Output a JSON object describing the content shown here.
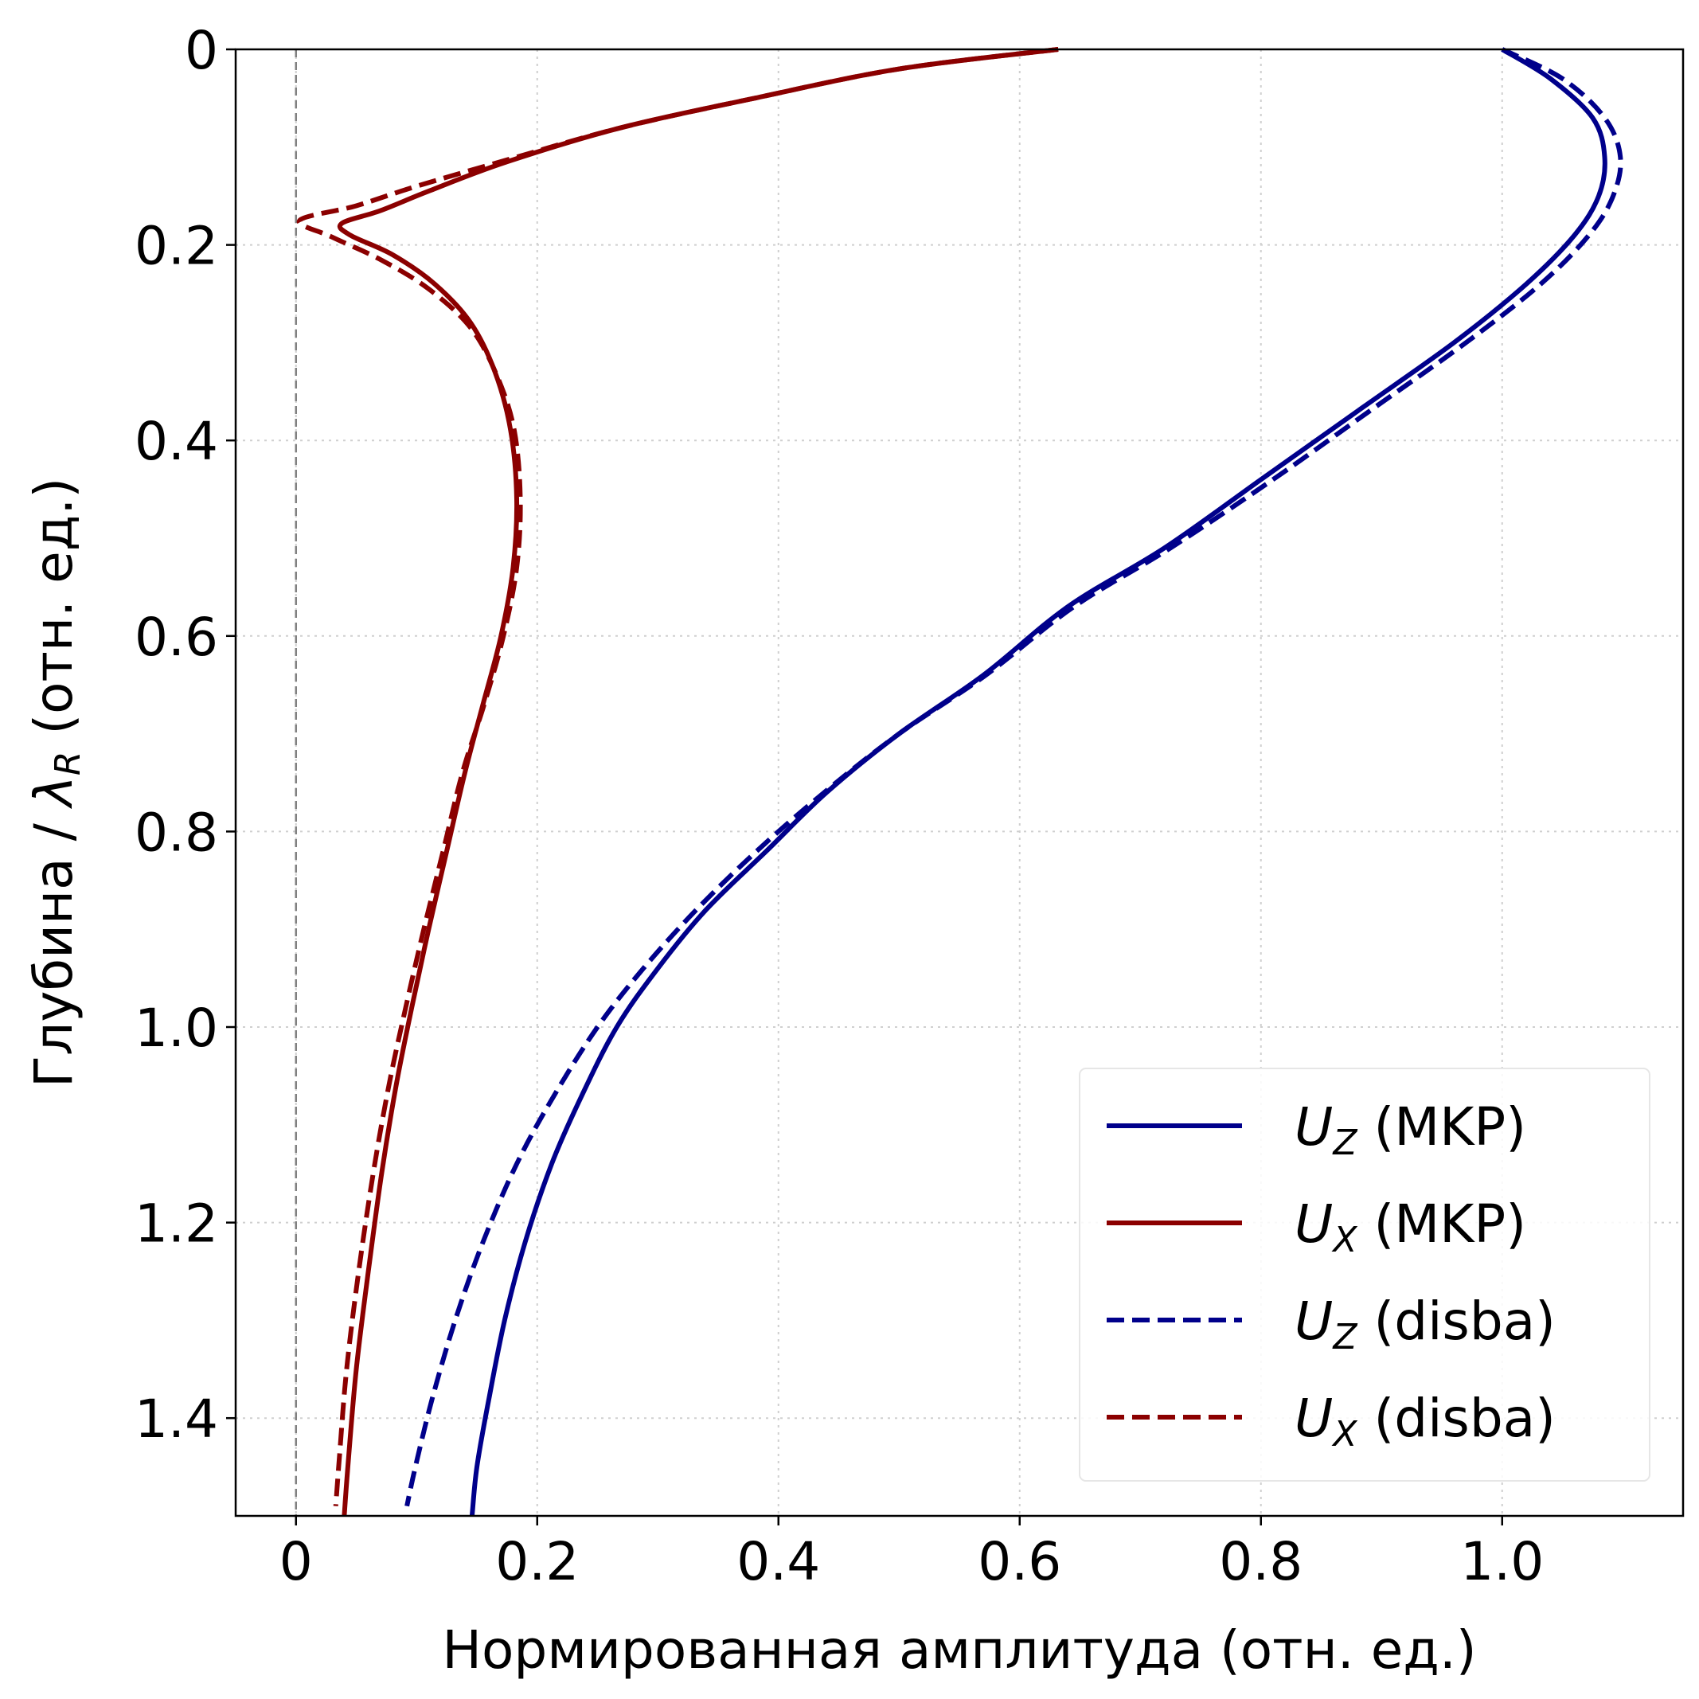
{
  "chart_data": {
    "type": "line",
    "xlabel": "Нормированная амплитуда (отн. ед.)",
    "ylabel": "Глубина / λR (отн. ед.)",
    "ylabel_parts": {
      "before": "Глубина / ",
      "symbol": "λ",
      "subscript": "R",
      "after": " (отн. ед.)"
    },
    "xlim": [
      -0.05,
      1.15
    ],
    "ylim": [
      1.5,
      0
    ],
    "y_inverted": true,
    "grid": true,
    "legend_position": "bottom-right",
    "xticks": [
      0,
      0.2,
      0.4,
      0.6,
      0.8,
      1.0
    ],
    "xtick_labels": [
      "0",
      "0.2",
      "0.4",
      "0.6",
      "0.8",
      "1.0"
    ],
    "yticks": [
      0,
      0.2,
      0.4,
      0.6,
      0.8,
      1.0,
      1.2,
      1.4
    ],
    "ytick_labels": [
      "0",
      "0.2",
      "0.4",
      "0.6",
      "0.8",
      "1.0",
      "1.2",
      "1.4"
    ],
    "reference_line": {
      "x": 0,
      "style": "dashed",
      "color": "#808080"
    },
    "series": [
      {
        "name": "U_Z (MKP)",
        "legend_symbol": "U",
        "legend_sub": "Z",
        "legend_suffix": " (MKP)",
        "color": "#00008b",
        "style": "solid",
        "points": [
          [
            1.0,
            0
          ],
          [
            1.04,
            0.03
          ],
          [
            1.075,
            0.07
          ],
          [
            1.085,
            0.11
          ],
          [
            1.08,
            0.15
          ],
          [
            1.06,
            0.19
          ],
          [
            1.02,
            0.24
          ],
          [
            0.96,
            0.3
          ],
          [
            0.88,
            0.37
          ],
          [
            0.8,
            0.44
          ],
          [
            0.72,
            0.51
          ],
          [
            0.64,
            0.57
          ],
          [
            0.57,
            0.64
          ],
          [
            0.5,
            0.7
          ],
          [
            0.44,
            0.76
          ],
          [
            0.39,
            0.82
          ],
          [
            0.34,
            0.88
          ],
          [
            0.3,
            0.94
          ],
          [
            0.266,
            1.0
          ],
          [
            0.237,
            1.07
          ],
          [
            0.212,
            1.14
          ],
          [
            0.19,
            1.22
          ],
          [
            0.173,
            1.3
          ],
          [
            0.16,
            1.38
          ],
          [
            0.15,
            1.45
          ],
          [
            0.146,
            1.5
          ]
        ]
      },
      {
        "name": "U_X (MKP)",
        "legend_symbol": "U",
        "legend_sub": "X",
        "legend_suffix": " (MKP)",
        "color": "#8b0000",
        "style": "solid",
        "points": [
          [
            0.632,
            0
          ],
          [
            0.5,
            0.02
          ],
          [
            0.38,
            0.05
          ],
          [
            0.27,
            0.08
          ],
          [
            0.175,
            0.115
          ],
          [
            0.11,
            0.145
          ],
          [
            0.07,
            0.165
          ],
          [
            0.038,
            0.178
          ],
          [
            0.045,
            0.19
          ],
          [
            0.08,
            0.21
          ],
          [
            0.115,
            0.24
          ],
          [
            0.145,
            0.28
          ],
          [
            0.165,
            0.33
          ],
          [
            0.178,
            0.39
          ],
          [
            0.183,
            0.46
          ],
          [
            0.18,
            0.53
          ],
          [
            0.17,
            0.6
          ],
          [
            0.155,
            0.67
          ],
          [
            0.14,
            0.74
          ],
          [
            0.125,
            0.82
          ],
          [
            0.11,
            0.9
          ],
          [
            0.096,
            0.98
          ],
          [
            0.083,
            1.06
          ],
          [
            0.071,
            1.15
          ],
          [
            0.06,
            1.25
          ],
          [
            0.05,
            1.35
          ],
          [
            0.043,
            1.45
          ],
          [
            0.04,
            1.5
          ]
        ]
      },
      {
        "name": "U_Z (disba)",
        "legend_symbol": "U",
        "legend_sub": "Z",
        "legend_suffix": " (disba)",
        "color": "#00008b",
        "style": "dashed",
        "points": [
          [
            1.0,
            0
          ],
          [
            1.05,
            0.03
          ],
          [
            1.085,
            0.07
          ],
          [
            1.098,
            0.11
          ],
          [
            1.092,
            0.15
          ],
          [
            1.072,
            0.19
          ],
          [
            1.032,
            0.24
          ],
          [
            0.97,
            0.3
          ],
          [
            0.89,
            0.37
          ],
          [
            0.81,
            0.44
          ],
          [
            0.725,
            0.51
          ],
          [
            0.645,
            0.57
          ],
          [
            0.572,
            0.64
          ],
          [
            0.5,
            0.7
          ],
          [
            0.438,
            0.76
          ],
          [
            0.382,
            0.82
          ],
          [
            0.332,
            0.88
          ],
          [
            0.288,
            0.94
          ],
          [
            0.25,
            1.0
          ],
          [
            0.214,
            1.07
          ],
          [
            0.183,
            1.14
          ],
          [
            0.155,
            1.22
          ],
          [
            0.132,
            1.3
          ],
          [
            0.113,
            1.38
          ],
          [
            0.099,
            1.45
          ],
          [
            0.092,
            1.49
          ]
        ]
      },
      {
        "name": "U_X (disba)",
        "legend_symbol": "U",
        "legend_sub": "X",
        "legend_suffix": " (disba)",
        "color": "#8b0000",
        "style": "dashed",
        "points": [
          [
            0.632,
            0
          ],
          [
            0.5,
            0.02
          ],
          [
            0.38,
            0.05
          ],
          [
            0.27,
            0.08
          ],
          [
            0.175,
            0.113
          ],
          [
            0.1,
            0.14
          ],
          [
            0.05,
            0.16
          ],
          [
            0.003,
            0.175
          ],
          [
            0.03,
            0.192
          ],
          [
            0.07,
            0.215
          ],
          [
            0.11,
            0.245
          ],
          [
            0.145,
            0.285
          ],
          [
            0.167,
            0.335
          ],
          [
            0.181,
            0.39
          ],
          [
            0.186,
            0.46
          ],
          [
            0.183,
            0.53
          ],
          [
            0.172,
            0.6
          ],
          [
            0.156,
            0.67
          ],
          [
            0.138,
            0.74
          ],
          [
            0.122,
            0.82
          ],
          [
            0.106,
            0.9
          ],
          [
            0.091,
            0.98
          ],
          [
            0.077,
            1.06
          ],
          [
            0.064,
            1.15
          ],
          [
            0.052,
            1.25
          ],
          [
            0.042,
            1.35
          ],
          [
            0.036,
            1.44
          ],
          [
            0.033,
            1.49
          ]
        ]
      }
    ]
  }
}
